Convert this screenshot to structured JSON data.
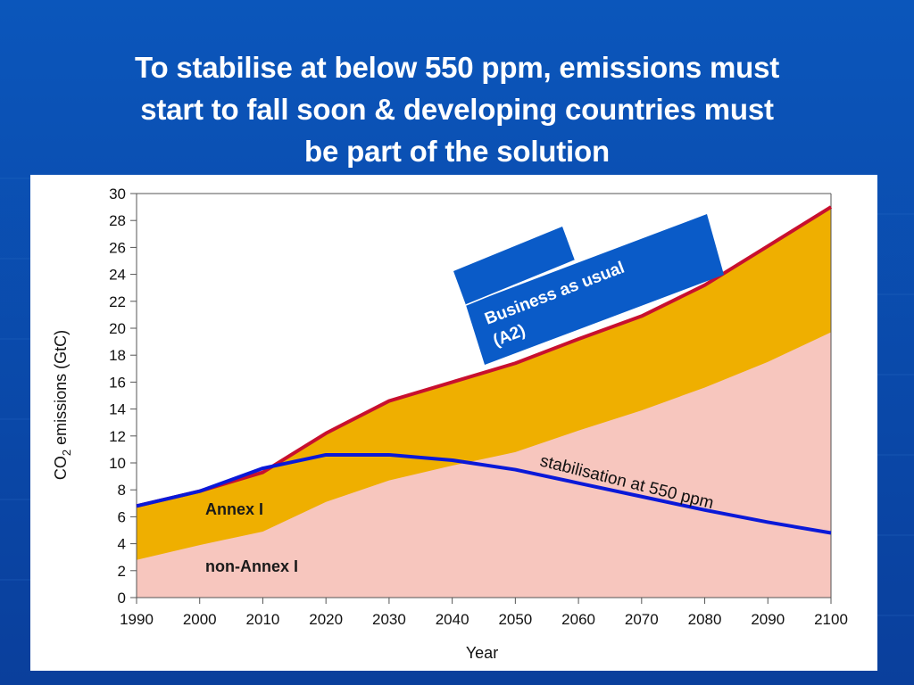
{
  "slide": {
    "title_lines": [
      "To stabilise at below 550 ppm, emissions must",
      "start to fall soon & developing countries must",
      "be part of the solution"
    ]
  },
  "colors": {
    "background": "#0a4fb0",
    "annex_area": "#efaf00",
    "non_annex_area": "#f7c6be",
    "bau_line": "#c8102e",
    "stabilisation_line": "#0a19d8",
    "callout_box": "#0a5bc8"
  },
  "chart_data": {
    "type": "area",
    "xlabel": "Year",
    "ylabel": "CO",
    "ylabel_sub": "2",
    "ylabel_suffix": " emissions (GtC)",
    "x_ticks": [
      "1990",
      "2000",
      "2010",
      "2020",
      "2030",
      "2040",
      "2050",
      "2060",
      "2070",
      "2080",
      "2090",
      "2100"
    ],
    "y_ticks": [
      "0",
      "2",
      "4",
      "6",
      "8",
      "10",
      "12",
      "14",
      "16",
      "18",
      "20",
      "22",
      "24",
      "26",
      "28",
      "30"
    ],
    "xlim": [
      1990,
      2100
    ],
    "ylim": [
      0,
      30
    ],
    "grid": false,
    "x": [
      1990,
      2000,
      2010,
      2020,
      2030,
      2040,
      2050,
      2060,
      2070,
      2080,
      2090,
      2100
    ],
    "series": [
      {
        "name": "non-Annex I",
        "kind": "stacked-area",
        "values": [
          2.8,
          3.9,
          4.9,
          7.1,
          8.7,
          9.8,
          10.8,
          12.4,
          13.9,
          15.6,
          17.5,
          19.7
        ]
      },
      {
        "name": "Annex I",
        "kind": "stacked-area-top",
        "values": [
          6.8,
          7.9,
          9.3,
          12.2,
          14.6,
          16.0,
          17.4,
          19.2,
          20.9,
          23.2,
          26.1,
          29.0
        ]
      },
      {
        "name": "Business as usual (A2)",
        "kind": "line",
        "values": [
          6.8,
          7.9,
          9.3,
          12.2,
          14.6,
          16.0,
          17.4,
          19.2,
          20.9,
          23.2,
          26.1,
          29.0
        ]
      },
      {
        "name": "stabilisation at 550 ppm",
        "kind": "line",
        "values": [
          6.8,
          7.9,
          9.6,
          10.6,
          10.6,
          10.2,
          9.5,
          8.5,
          7.5,
          6.5,
          5.6,
          4.8
        ]
      }
    ],
    "annotations": {
      "annex_label": "Annex I",
      "non_annex_label": "non-Annex I",
      "stabilisation_label": "stabilisation at 550 ppm",
      "bau_label_line1": "Business as usual",
      "bau_label_line2": "(A2)"
    }
  }
}
